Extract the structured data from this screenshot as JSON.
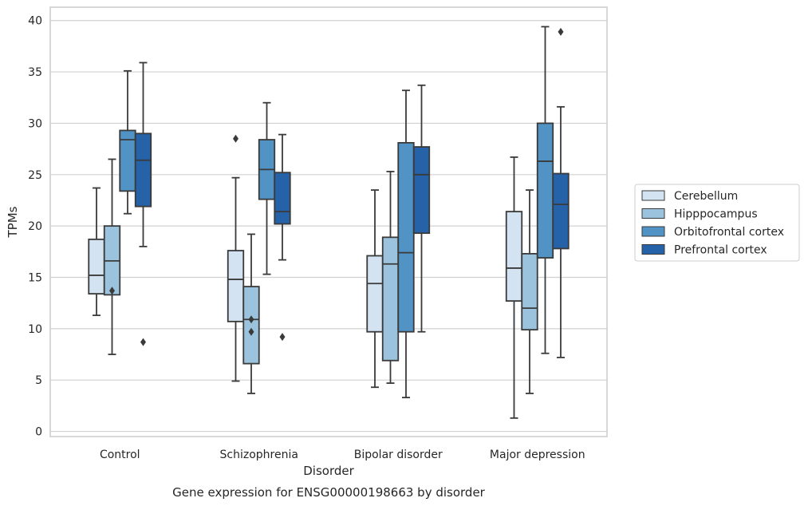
{
  "chart_data": {
    "type": "box",
    "caption": "Gene expression for ENSG00000198663 by disorder",
    "xlabel": "Disorder",
    "ylabel": "TPMs",
    "ylim": [
      -0.5,
      41.3
    ],
    "yticks": [
      0,
      5,
      10,
      15,
      20,
      25,
      30,
      35,
      40
    ],
    "grid": "horizontal",
    "legend_position": "right",
    "categories": [
      "Control",
      "Schizophrenia",
      "Bipolar disorder",
      "Major depression"
    ],
    "series": [
      {
        "name": "Cerebellum",
        "color": "#d3e3f2",
        "boxes": [
          {
            "whislo": 11.3,
            "q1": 13.4,
            "med": 15.2,
            "q3": 18.7,
            "whishi": 23.7,
            "fliers": []
          },
          {
            "whislo": 4.9,
            "q1": 10.7,
            "med": 14.8,
            "q3": 17.6,
            "whishi": 24.7,
            "fliers": [
              28.5
            ]
          },
          {
            "whislo": 4.3,
            "q1": 9.7,
            "med": 14.4,
            "q3": 17.1,
            "whishi": 23.5,
            "fliers": []
          },
          {
            "whislo": 1.3,
            "q1": 12.7,
            "med": 15.9,
            "q3": 21.4,
            "whishi": 26.7,
            "fliers": []
          }
        ]
      },
      {
        "name": "Hipppocampus",
        "color": "#9bc3dd",
        "boxes": [
          {
            "whislo": 7.5,
            "q1": 13.3,
            "med": 16.6,
            "q3": 20.0,
            "whishi": 26.5,
            "fliers": [
              13.7
            ]
          },
          {
            "whislo": 3.7,
            "q1": 6.6,
            "med": 10.9,
            "q3": 14.1,
            "whishi": 19.2,
            "fliers": [
              9.7,
              10.9
            ]
          },
          {
            "whislo": 4.7,
            "q1": 6.9,
            "med": 16.3,
            "q3": 18.9,
            "whishi": 25.3,
            "fliers": []
          },
          {
            "whislo": 3.7,
            "q1": 9.9,
            "med": 12.0,
            "q3": 17.3,
            "whishi": 23.5,
            "fliers": []
          }
        ]
      },
      {
        "name": "Orbitofrontal cortex",
        "color": "#5093c4",
        "boxes": [
          {
            "whislo": 21.2,
            "q1": 23.4,
            "med": 28.4,
            "q3": 29.3,
            "whishi": 35.1,
            "fliers": []
          },
          {
            "whislo": 15.3,
            "q1": 22.6,
            "med": 25.5,
            "q3": 28.4,
            "whishi": 32.0,
            "fliers": []
          },
          {
            "whislo": 3.3,
            "q1": 9.7,
            "med": 17.4,
            "q3": 28.1,
            "whishi": 33.2,
            "fliers": []
          },
          {
            "whislo": 7.6,
            "q1": 16.9,
            "med": 26.3,
            "q3": 30.0,
            "whishi": 39.4,
            "fliers": []
          }
        ]
      },
      {
        "name": "Prefrontal cortex",
        "color": "#2562a7",
        "boxes": [
          {
            "whislo": 18.0,
            "q1": 21.9,
            "med": 26.4,
            "q3": 29.0,
            "whishi": 35.9,
            "fliers": [
              8.7
            ]
          },
          {
            "whislo": 16.7,
            "q1": 20.2,
            "med": 21.4,
            "q3": 25.2,
            "whishi": 28.9,
            "fliers": [
              9.2
            ]
          },
          {
            "whislo": 9.7,
            "q1": 19.3,
            "med": 25.0,
            "q3": 27.7,
            "whishi": 33.7,
            "fliers": []
          },
          {
            "whislo": 7.2,
            "q1": 17.8,
            "med": 22.1,
            "q3": 25.1,
            "whishi": 31.6,
            "fliers": [
              38.9
            ]
          }
        ]
      }
    ]
  }
}
